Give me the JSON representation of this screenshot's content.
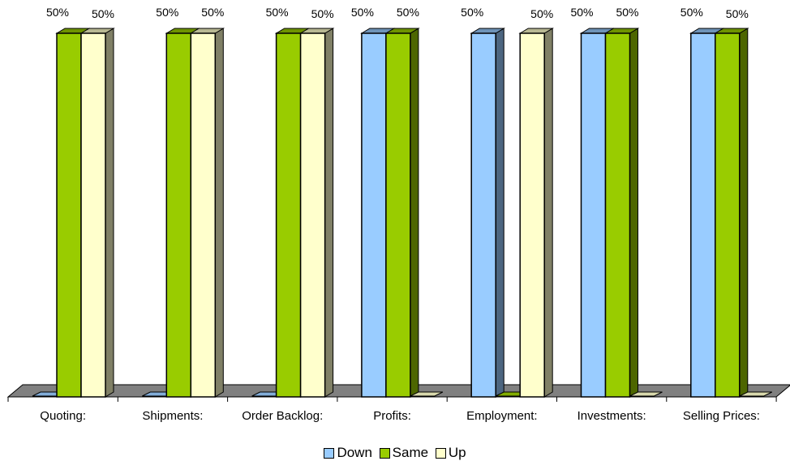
{
  "chart_data": {
    "type": "bar",
    "categories": [
      "Quoting:",
      "Shipments:",
      "Order Backlog:",
      "Profits:",
      "Employment:",
      "Investments:",
      "Selling Prices:"
    ],
    "series": [
      {
        "name": "Down",
        "color": "#99CCFF",
        "values": [
          0,
          0,
          0,
          50,
          50,
          50,
          50
        ]
      },
      {
        "name": "Same",
        "color": "#99CC00",
        "values": [
          50,
          50,
          50,
          50,
          0,
          50,
          50
        ]
      },
      {
        "name": "Up",
        "color": "#FFFFCC",
        "values": [
          50,
          50,
          50,
          0,
          50,
          0,
          0
        ]
      }
    ],
    "data_labels": [
      "50%",
      "50%",
      "50%",
      "50%",
      "50%",
      "50%",
      "50%",
      "50%",
      "50%",
      "50%",
      "50%",
      "50%",
      "50%",
      "50%"
    ],
    "ylim": [
      0,
      50
    ],
    "legend_position": "bottom",
    "grid": false,
    "style": "3d-clustered-column"
  }
}
